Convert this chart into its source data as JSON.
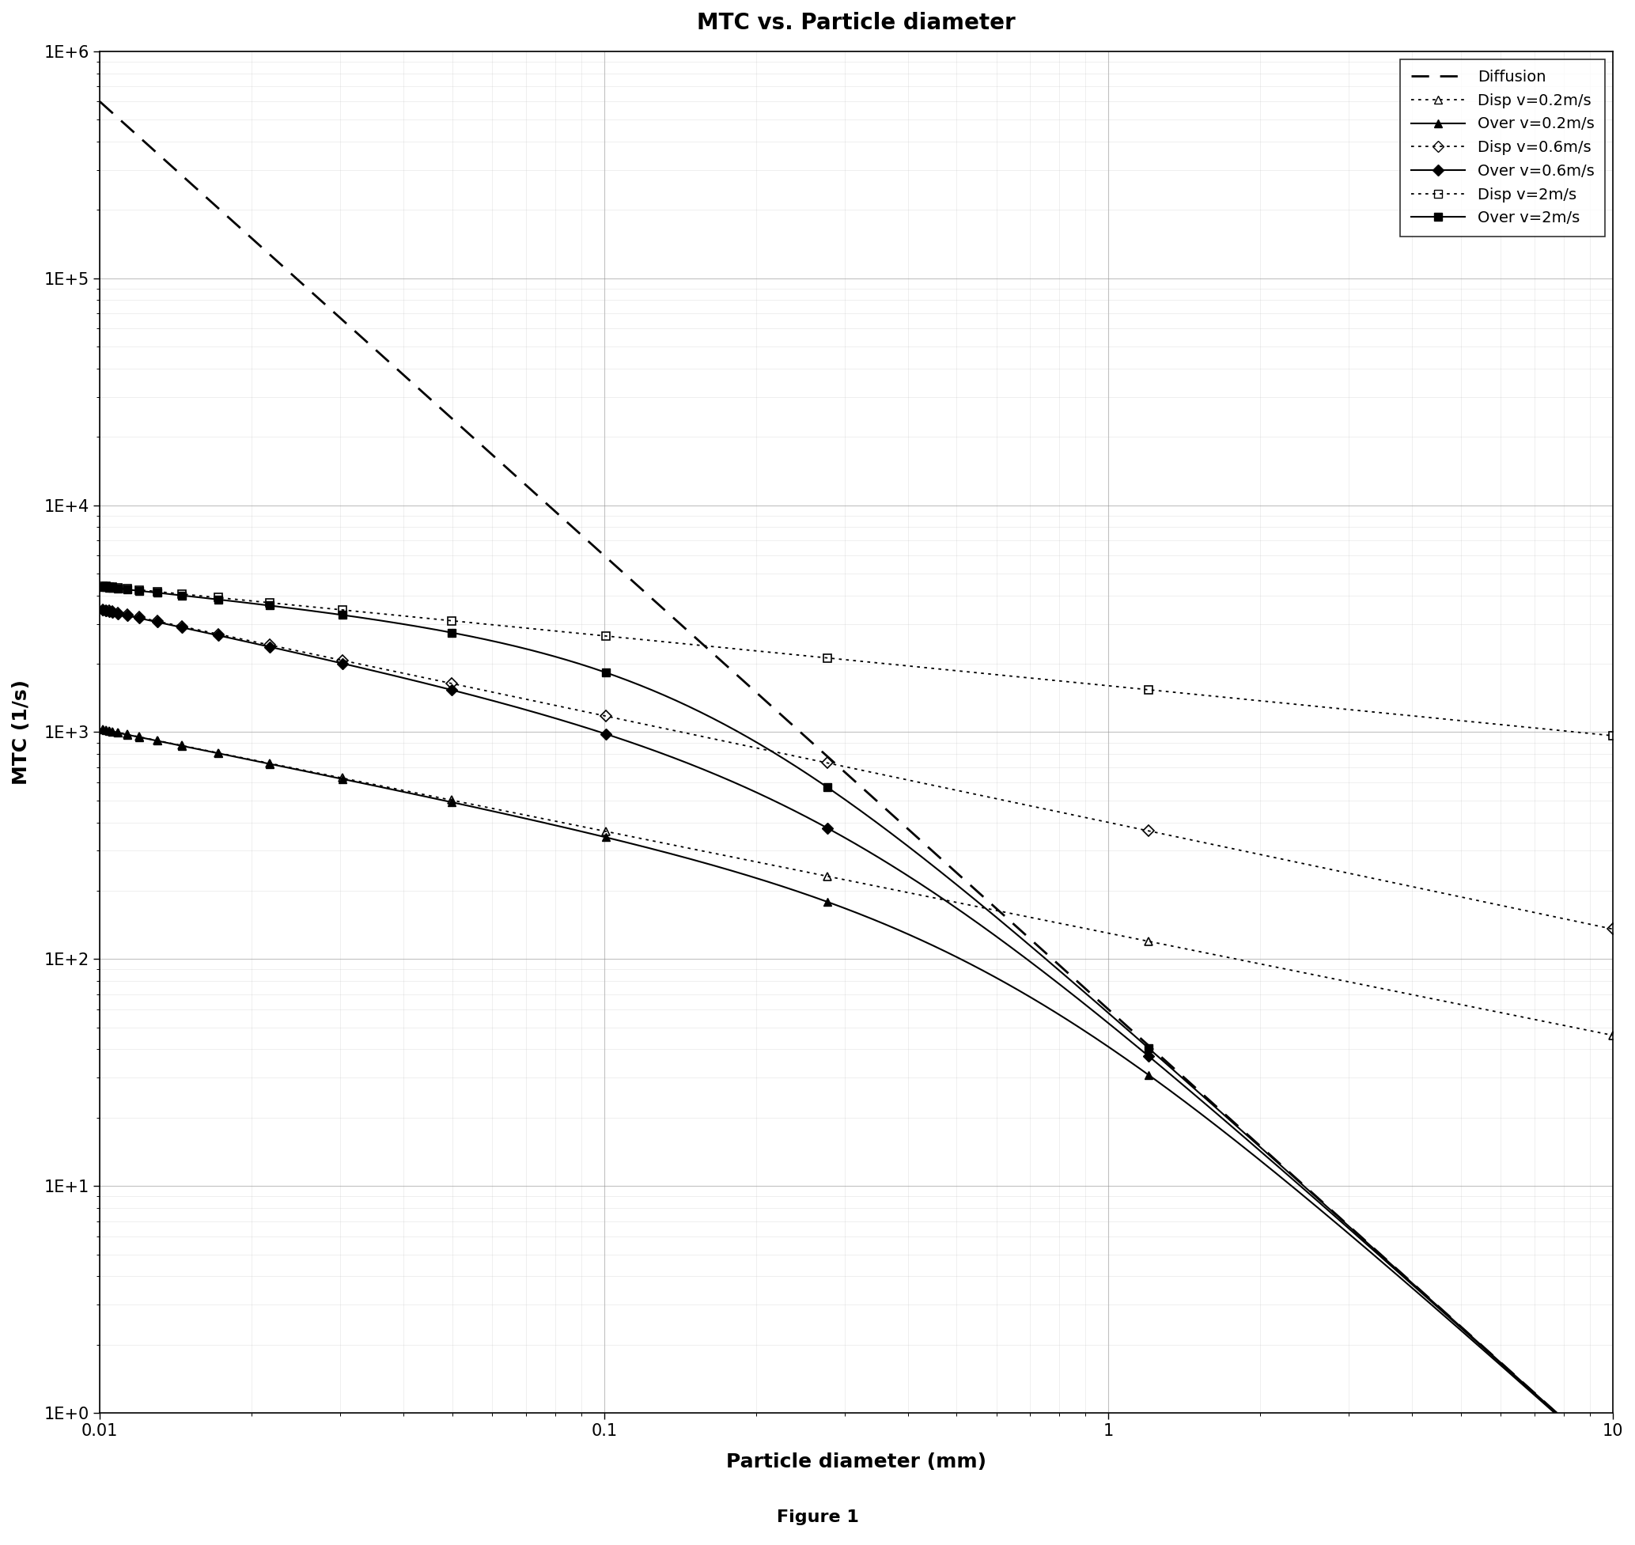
{
  "title": "MTC vs. Particle diameter",
  "xlabel": "Particle diameter (mm)",
  "ylabel": "MTC (1/s)",
  "figure_caption": "Figure 1",
  "xlim": [
    0.01,
    10
  ],
  "ylim": [
    1.0,
    1000000.0
  ],
  "background_color": "#ffffff",
  "title_fontsize": 20,
  "label_fontsize": 18,
  "tick_fontsize": 15,
  "legend_fontsize": 14,
  "caption_fontsize": 16
}
